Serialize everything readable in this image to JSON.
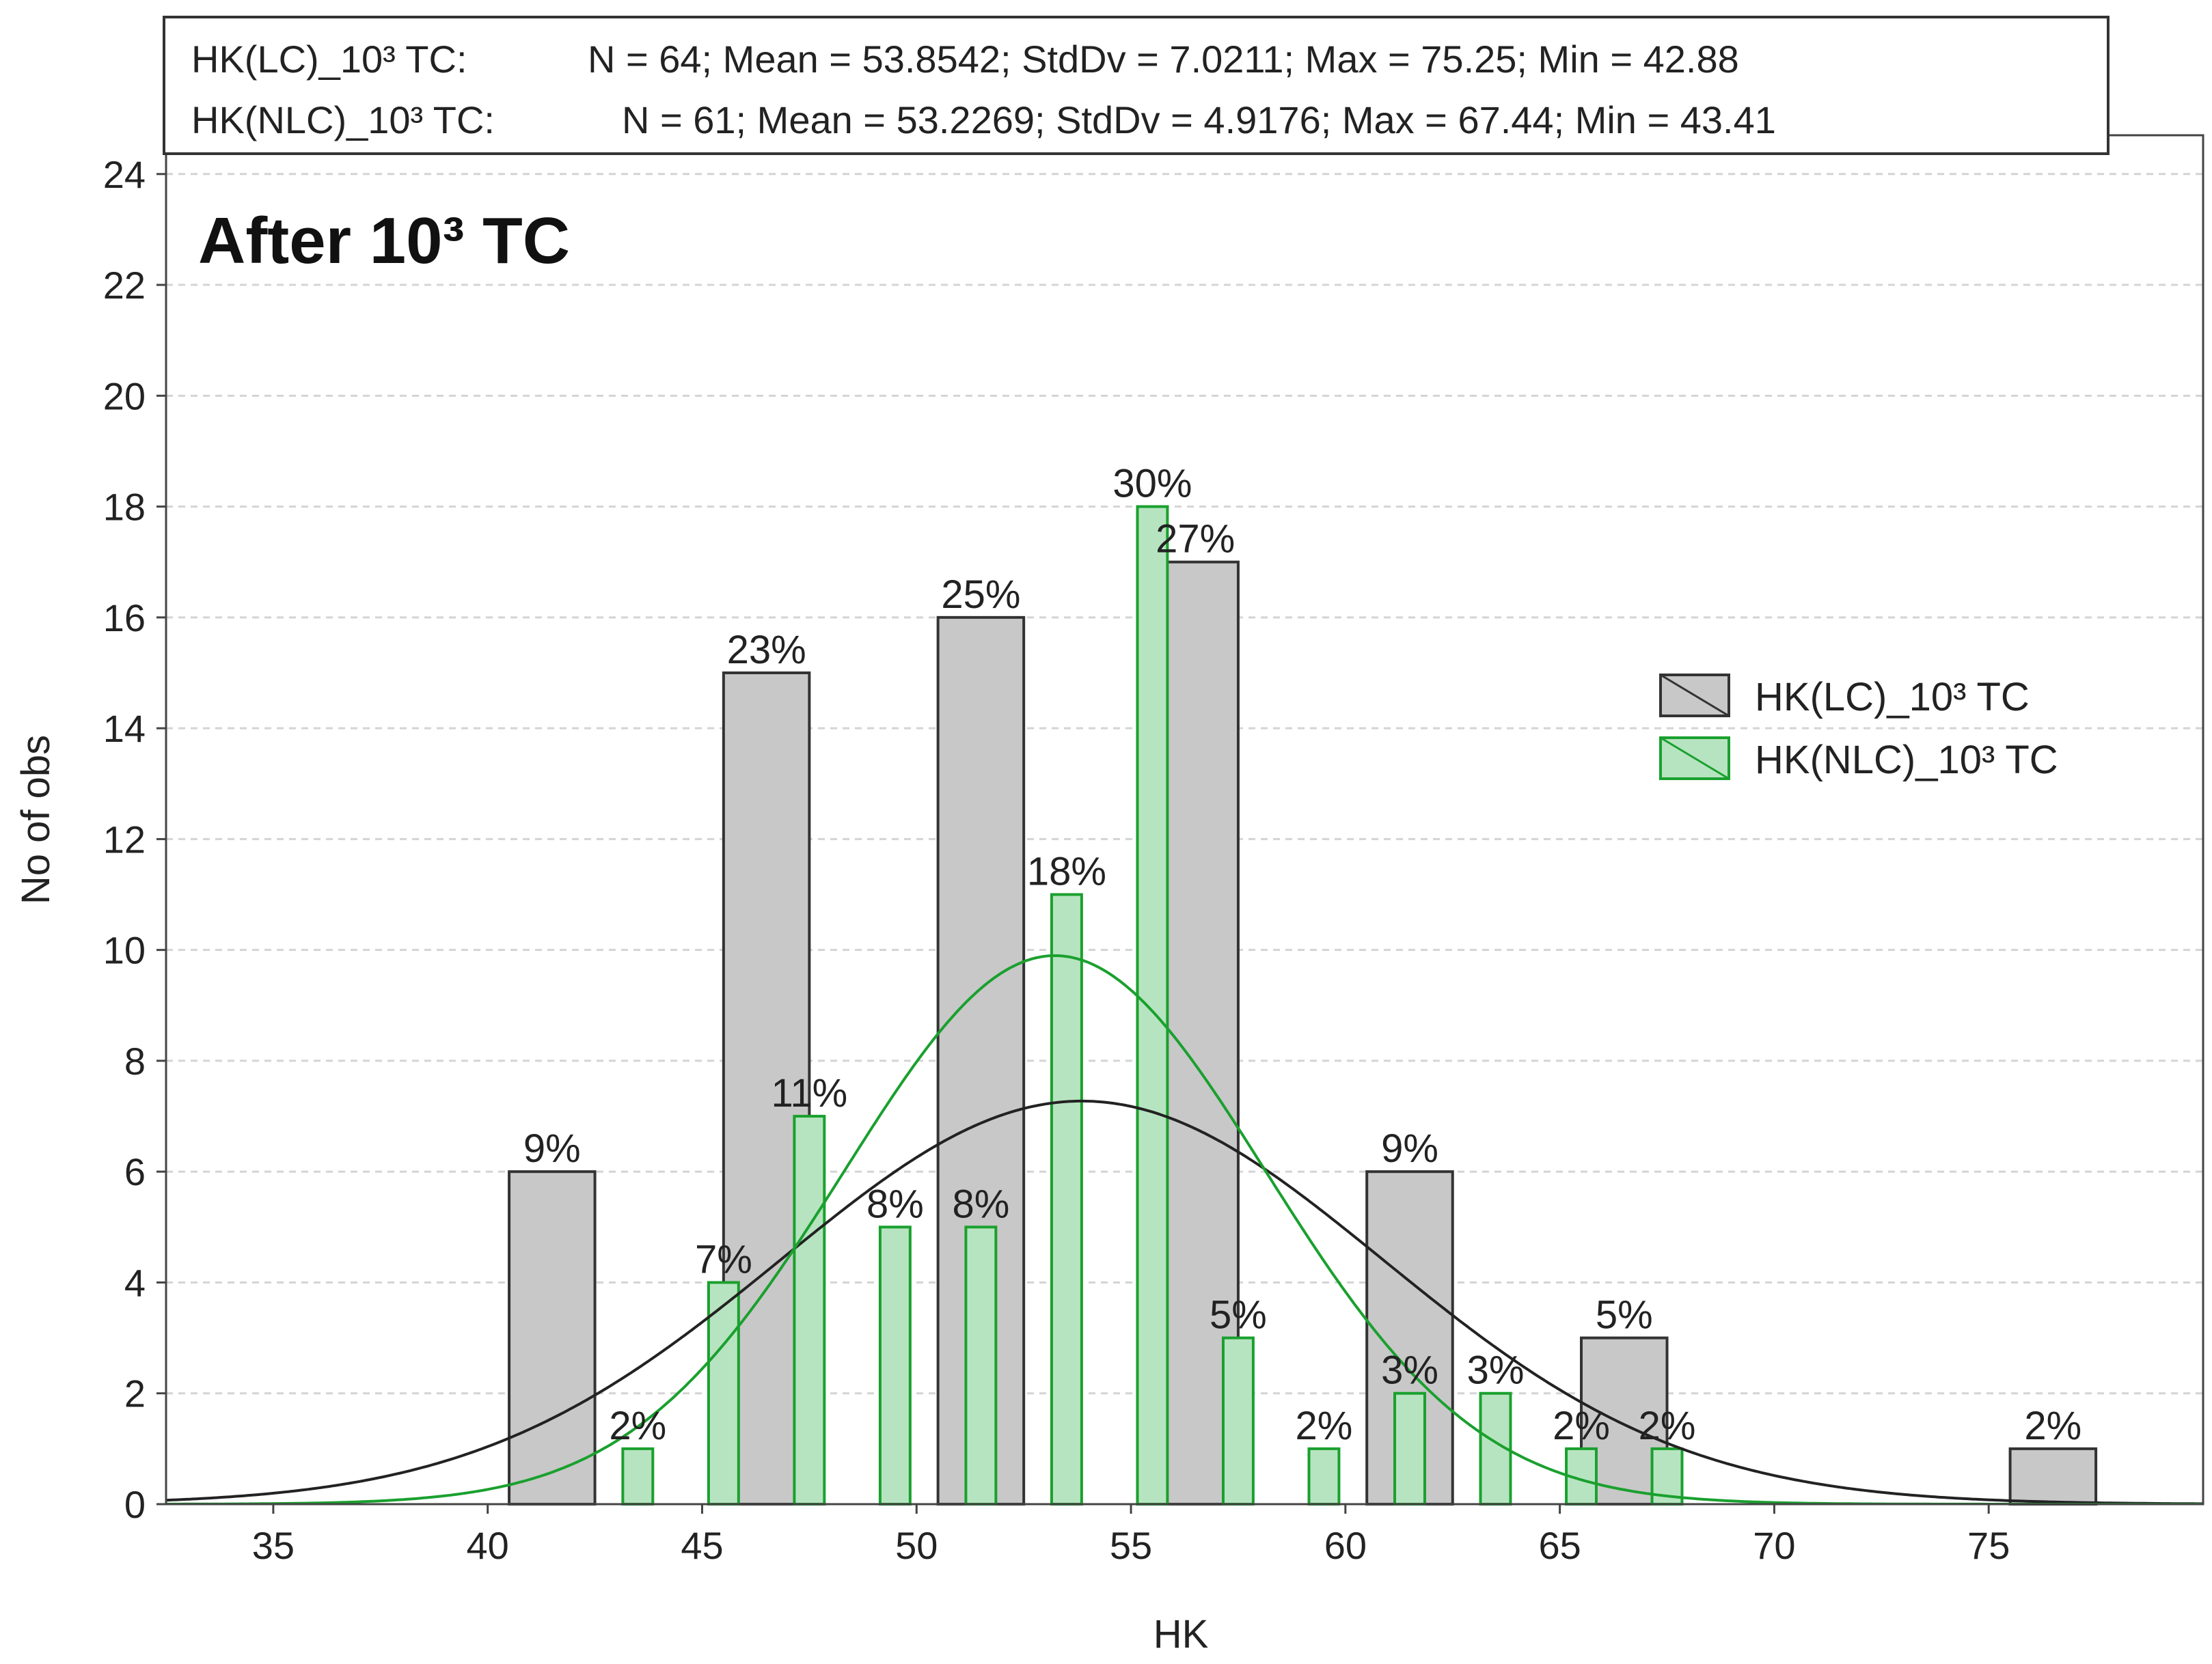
{
  "colors": {
    "lc_fill": "#c8c8c8",
    "lc_stroke": "#333333",
    "nlc_fill": "#b7e4c0",
    "nlc_stroke": "#1aa02e",
    "lc_curve": "#222222",
    "nlc_curve": "#1aa02e",
    "grid": "#d4d4d4"
  },
  "chart_data": {
    "type": "histogram",
    "title": "After 10³ TC",
    "xlabel": "HK",
    "ylabel": "No of obs",
    "xlim": [
      32.5,
      80
    ],
    "ylim": [
      0,
      24.7
    ],
    "xticks": [
      35,
      40,
      45,
      50,
      55,
      60,
      65,
      70,
      75
    ],
    "yticks": [
      0,
      2,
      4,
      6,
      8,
      10,
      12,
      14,
      16,
      18,
      20,
      22,
      24
    ],
    "grid": "horizontal dashed",
    "legend_position": "right",
    "stats": [
      {
        "series": "HK(LC)_10³ TC:",
        "text": "N = 64; Mean = 53.8542; StdDv = 7.0211; Max = 75.25; Min = 42.88"
      },
      {
        "series": "HK(NLC)_10³ TC:",
        "text": "N = 61; Mean = 53.2269; StdDv = 4.9176; Max = 67.44; Min = 43.41"
      }
    ],
    "series": [
      {
        "name": "HK(LC)_10³ TC",
        "bin_width": 2,
        "bars": [
          {
            "x": 41.5,
            "count": 6,
            "label": "9%"
          },
          {
            "x": 46.5,
            "count": 15,
            "label": "23%"
          },
          {
            "x": 51.5,
            "count": 16,
            "label": "25%"
          },
          {
            "x": 56.5,
            "count": 17,
            "label": "27%"
          },
          {
            "x": 61.5,
            "count": 6,
            "label": "9%"
          },
          {
            "x": 66.5,
            "count": 3,
            "label": "5%"
          },
          {
            "x": 76.5,
            "count": 1,
            "label": "2%"
          }
        ],
        "normal_fit": {
          "n": 64,
          "mean": 53.8542,
          "sd": 7.0211
        }
      },
      {
        "name": "HK(NLC)_10³ TC",
        "bin_width": 0.7,
        "bars": [
          {
            "x": 43.5,
            "count": 1,
            "label": "2%"
          },
          {
            "x": 45.5,
            "count": 4,
            "label": "7%"
          },
          {
            "x": 47.5,
            "count": 7,
            "label": "11%"
          },
          {
            "x": 49.5,
            "count": 5,
            "label": "8%"
          },
          {
            "x": 51.5,
            "count": 5,
            "label": "8%"
          },
          {
            "x": 53.5,
            "count": 11,
            "label": "18%"
          },
          {
            "x": 55.5,
            "count": 18,
            "label": "30%"
          },
          {
            "x": 57.5,
            "count": 3,
            "label": "5%"
          },
          {
            "x": 59.5,
            "count": 1,
            "label": "2%"
          },
          {
            "x": 61.5,
            "count": 2,
            "label": "3%"
          },
          {
            "x": 63.5,
            "count": 2,
            "label": "3%"
          },
          {
            "x": 65.5,
            "count": 1,
            "label": "2%"
          },
          {
            "x": 67.5,
            "count": 1,
            "label": "2%"
          }
        ],
        "normal_fit": {
          "n": 61,
          "mean": 53.2269,
          "sd": 4.9176
        }
      }
    ]
  }
}
